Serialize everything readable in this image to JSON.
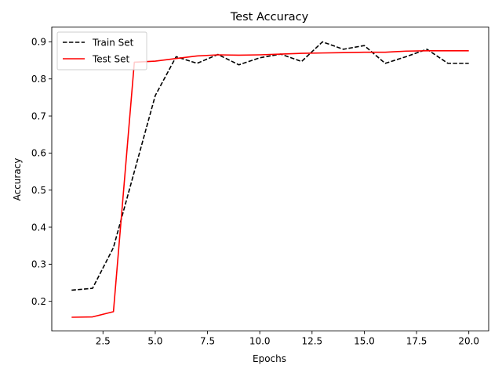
{
  "chart_data": {
    "type": "line",
    "title": "Test Accuracy",
    "xlabel": "Epochs",
    "ylabel": "Accuracy",
    "xlim": [
      0.05,
      20.95
    ],
    "ylim": [
      0.12,
      0.94
    ],
    "xticks": [
      2.5,
      5.0,
      7.5,
      10.0,
      12.5,
      15.0,
      17.5,
      20.0
    ],
    "xtick_labels": [
      "2.5",
      "5.0",
      "7.5",
      "10.0",
      "12.5",
      "15.0",
      "17.5",
      "20.0"
    ],
    "yticks": [
      0.2,
      0.3,
      0.4,
      0.5,
      0.6,
      0.7,
      0.8,
      0.9
    ],
    "ytick_labels": [
      "0.2",
      "0.3",
      "0.4",
      "0.5",
      "0.6",
      "0.7",
      "0.8",
      "0.9"
    ],
    "grid": false,
    "legend_position": "top-left",
    "x": [
      1,
      2,
      3,
      4,
      5,
      6,
      7,
      8,
      9,
      10,
      11,
      12,
      13,
      14,
      15,
      16,
      17,
      18,
      19,
      20
    ],
    "series": [
      {
        "name": "Train Set",
        "color": "#000000",
        "style": "dashed",
        "values": [
          0.23,
          0.235,
          0.345,
          0.55,
          0.755,
          0.86,
          0.842,
          0.866,
          0.838,
          0.857,
          0.867,
          0.847,
          0.9,
          0.88,
          0.89,
          0.842,
          0.86,
          0.88,
          0.842,
          0.842
        ]
      },
      {
        "name": "Test Set",
        "color": "#ff0000",
        "style": "solid",
        "values": [
          0.157,
          0.158,
          0.172,
          0.845,
          0.848,
          0.855,
          0.862,
          0.865,
          0.864,
          0.865,
          0.867,
          0.869,
          0.87,
          0.871,
          0.872,
          0.872,
          0.875,
          0.876,
          0.876,
          0.876
        ]
      }
    ]
  }
}
